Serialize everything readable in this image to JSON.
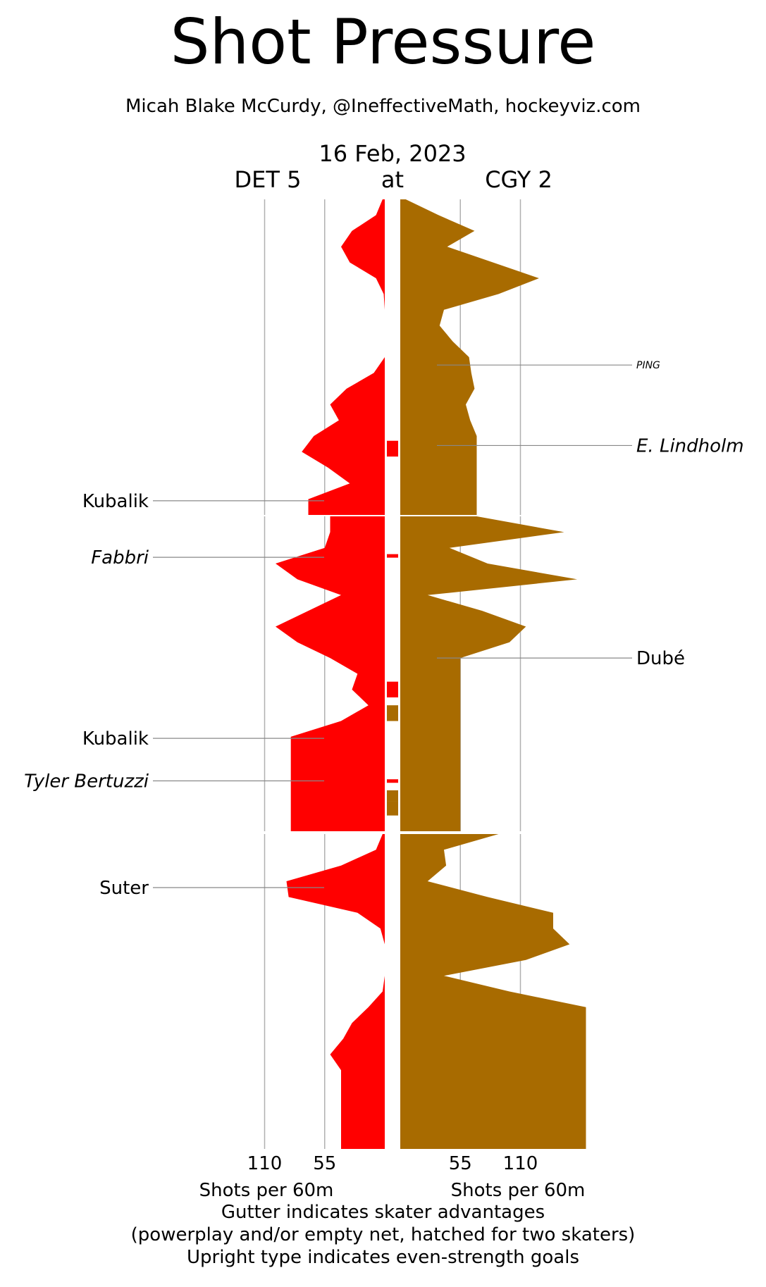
{
  "title": "Shot Pressure",
  "subtitle": "Micah Blake McCurdy, @IneffectiveMath, hockeyviz.com",
  "date": "16 Feb, 2023",
  "teams": {
    "away": "DET 5",
    "at": "at",
    "home": "CGY 2"
  },
  "colors": {
    "away": "#ff0000",
    "home": "#a86b00",
    "grid": "#b0b0b0",
    "line": "#888888"
  },
  "footer": {
    "line1": "Gutter indicates skater advantages",
    "line2": "(powerplay and/or empty net, hatched for two skaters)",
    "line3": "Upright type indicates even-strength goals"
  },
  "chart_data": {
    "type": "area",
    "orientation": "vertical-mirrored",
    "time_axis": "game minutes, top to bottom",
    "periods": 3,
    "xticks": {
      "away": [
        110,
        55
      ],
      "home": [
        55,
        110
      ]
    },
    "xlabel_away": "Shots per 60m",
    "xlabel_home": "Shots per 60m",
    "series": [
      {
        "name": "DET",
        "side": "left",
        "points": [
          [
            0,
            2
          ],
          [
            1,
            8
          ],
          [
            2,
            30
          ],
          [
            3,
            40
          ],
          [
            4,
            32
          ],
          [
            5,
            8
          ],
          [
            6,
            1
          ],
          [
            7,
            0
          ],
          [
            8,
            0
          ],
          [
            9,
            0
          ],
          [
            10,
            0
          ],
          [
            11,
            10
          ],
          [
            12,
            35
          ],
          [
            13,
            50
          ],
          [
            14,
            42
          ],
          [
            15,
            65
          ],
          [
            16,
            76
          ],
          [
            17,
            52
          ],
          [
            18,
            32
          ],
          [
            19,
            70
          ],
          [
            20,
            50
          ],
          [
            21,
            50
          ],
          [
            22,
            55
          ],
          [
            23,
            100
          ],
          [
            24,
            80
          ],
          [
            25,
            40
          ],
          [
            26,
            70
          ],
          [
            27,
            100
          ],
          [
            28,
            80
          ],
          [
            29,
            50
          ],
          [
            30,
            25
          ],
          [
            31,
            30
          ],
          [
            32,
            15
          ],
          [
            33,
            40
          ],
          [
            34,
            86
          ],
          [
            40,
            2
          ],
          [
            41,
            8
          ],
          [
            42,
            40
          ],
          [
            43,
            90
          ],
          [
            44,
            88
          ],
          [
            45,
            25
          ],
          [
            46,
            4
          ],
          [
            47,
            0
          ],
          [
            48,
            0
          ],
          [
            49,
            0
          ],
          [
            50,
            2
          ],
          [
            51,
            15
          ],
          [
            52,
            30
          ],
          [
            53,
            38
          ],
          [
            54,
            50
          ],
          [
            55,
            40
          ]
        ]
      },
      {
        "name": "CGY",
        "side": "right",
        "points": [
          [
            0,
            5
          ],
          [
            1,
            35
          ],
          [
            2,
            68
          ],
          [
            3,
            43
          ],
          [
            4,
            85
          ],
          [
            5,
            127
          ],
          [
            6,
            90
          ],
          [
            7,
            40
          ],
          [
            8,
            36
          ],
          [
            9,
            48
          ],
          [
            10,
            63
          ],
          [
            11,
            65
          ],
          [
            12,
            68
          ],
          [
            13,
            60
          ],
          [
            14,
            64
          ],
          [
            15,
            70
          ],
          [
            20,
            70
          ],
          [
            21,
            150
          ],
          [
            22,
            45
          ],
          [
            23,
            80
          ],
          [
            24,
            162
          ],
          [
            25,
            25
          ],
          [
            26,
            75
          ],
          [
            27,
            115
          ],
          [
            28,
            100
          ],
          [
            29,
            55
          ],
          [
            40,
            90
          ],
          [
            41,
            40
          ],
          [
            42,
            42
          ],
          [
            43,
            25
          ],
          [
            44,
            80
          ],
          [
            45,
            140
          ],
          [
            46,
            140
          ],
          [
            47,
            155
          ],
          [
            48,
            115
          ],
          [
            49,
            40
          ],
          [
            50,
            100
          ],
          [
            51,
            170
          ]
        ]
      }
    ],
    "advantages": [
      {
        "team": "DET",
        "from": 15.3,
        "to": 16.3
      },
      {
        "team": "DET",
        "from": 22.4,
        "to": 22.6
      },
      {
        "team": "DET",
        "from": 30.5,
        "to": 31.5
      },
      {
        "team": "CGY",
        "from": 32.0,
        "to": 33.0
      },
      {
        "team": "DET",
        "from": 36.7,
        "to": 36.9
      },
      {
        "team": "CGY",
        "from": 37.4,
        "to": 38.1
      },
      {
        "team": "CGY",
        "from": 38.1,
        "to": 39.0
      }
    ],
    "goals": [
      {
        "team": "CGY",
        "player": "PING",
        "minute": 10.5,
        "even_strength": false,
        "small": true
      },
      {
        "team": "CGY",
        "player": "E. Lindholm",
        "minute": 15.6,
        "even_strength": false
      },
      {
        "team": "DET",
        "player": "Kubalik",
        "minute": 19.1,
        "even_strength": true
      },
      {
        "team": "DET",
        "player": "Fabbri",
        "minute": 22.6,
        "even_strength": false
      },
      {
        "team": "CGY",
        "player": "Dubé",
        "minute": 29.0,
        "even_strength": true
      },
      {
        "team": "DET",
        "player": "Kubalik",
        "minute": 34.1,
        "even_strength": true
      },
      {
        "team": "DET",
        "player": "Tyler Bertuzzi",
        "minute": 36.8,
        "even_strength": false
      },
      {
        "team": "DET",
        "player": "Suter",
        "minute": 43.4,
        "even_strength": true
      }
    ]
  }
}
